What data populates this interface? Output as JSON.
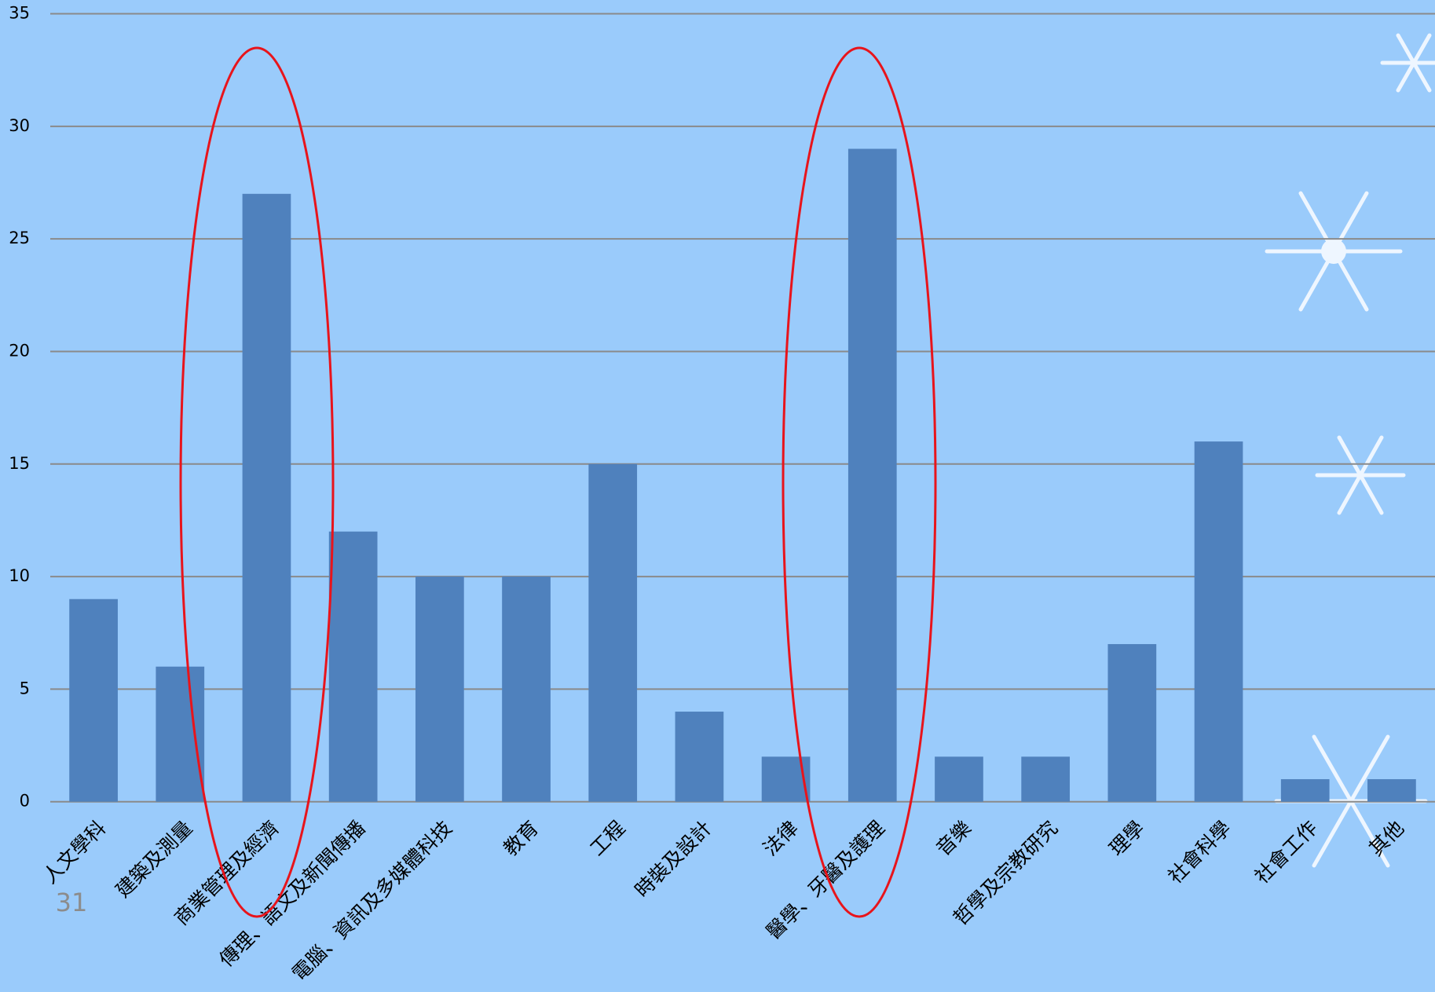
{
  "chart_data": {
    "type": "bar",
    "categories": [
      "人文學科",
      "建築及測量",
      "商業管理及經濟",
      "傳理、語文及新聞傳播",
      "電腦、資訊及多媒體科技",
      "教育",
      "工程",
      "時裝及設計",
      "法律",
      "醫學、牙醫及護理",
      "音樂",
      "哲學及宗教研究",
      "理學",
      "社會科學",
      "社會工作",
      "其他"
    ],
    "values": [
      9,
      6,
      27,
      12,
      10,
      10,
      15,
      4,
      2,
      29,
      2,
      2,
      7,
      16,
      1,
      1
    ],
    "color": "#4f81bd",
    "ylim": [
      0,
      35
    ],
    "yticks": [
      0,
      5,
      10,
      15,
      20,
      25,
      30,
      35
    ],
    "grid": true
  },
  "slide": {
    "page_number": "31"
  }
}
